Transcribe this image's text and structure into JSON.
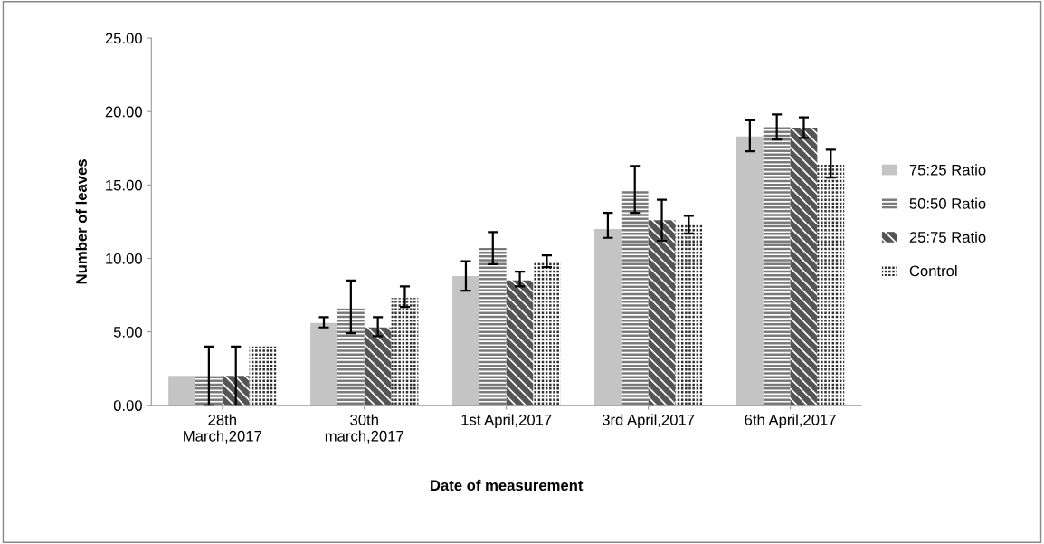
{
  "chart_data": {
    "type": "bar",
    "xlabel": "Date of measurement",
    "ylabel": "Number of leaves",
    "categories": [
      "28th\nMarch,2017",
      "30th\nmarch,2017",
      "1st April,2017",
      "3rd April,2017",
      "6th April,2017"
    ],
    "series": [
      {
        "name": "75:25 Ratio",
        "color": "#c4c4c4",
        "values": [
          2.0,
          5.6,
          8.8,
          12.0,
          18.3
        ],
        "errors": [
          null,
          [
            5.3,
            6.0
          ],
          [
            7.8,
            9.8
          ],
          [
            11.4,
            13.1
          ],
          [
            17.3,
            19.4
          ]
        ]
      },
      {
        "name": "50:50 Ratio",
        "color": "#7a7a7a",
        "values": [
          2.0,
          6.6,
          10.7,
          14.6,
          19.0
        ],
        "errors": [
          2.0,
          [
            4.9,
            8.5
          ],
          [
            9.6,
            11.8
          ],
          [
            13.1,
            16.3
          ],
          [
            18.1,
            19.8
          ]
        ]
      },
      {
        "name": "25:75 Ratio",
        "color": "#555555",
        "values": [
          2.0,
          5.3,
          8.5,
          12.6,
          18.9
        ],
        "errors": [
          2.0,
          [
            4.7,
            6.0
          ],
          [
            8.1,
            9.1
          ],
          [
            11.2,
            14.0
          ],
          [
            18.2,
            19.6
          ]
        ]
      },
      {
        "name": "Control",
        "color": "#2e2e2e",
        "values": [
          4.0,
          7.3,
          9.7,
          12.3,
          16.4
        ],
        "errors": [
          null,
          [
            6.7,
            8.1
          ],
          [
            9.4,
            10.2
          ],
          [
            11.7,
            12.9
          ],
          [
            15.5,
            17.4
          ]
        ]
      }
    ],
    "ylim": [
      0,
      25
    ],
    "yticks": [
      {
        "value": 0,
        "label": "0.00"
      },
      {
        "value": 5,
        "label": "5.00"
      },
      {
        "value": 10,
        "label": "10.00"
      },
      {
        "value": 15,
        "label": "15.00"
      },
      {
        "value": 20,
        "label": "20.00"
      },
      {
        "value": 25,
        "label": "25.00"
      }
    ],
    "grid": false,
    "legend": "right"
  }
}
